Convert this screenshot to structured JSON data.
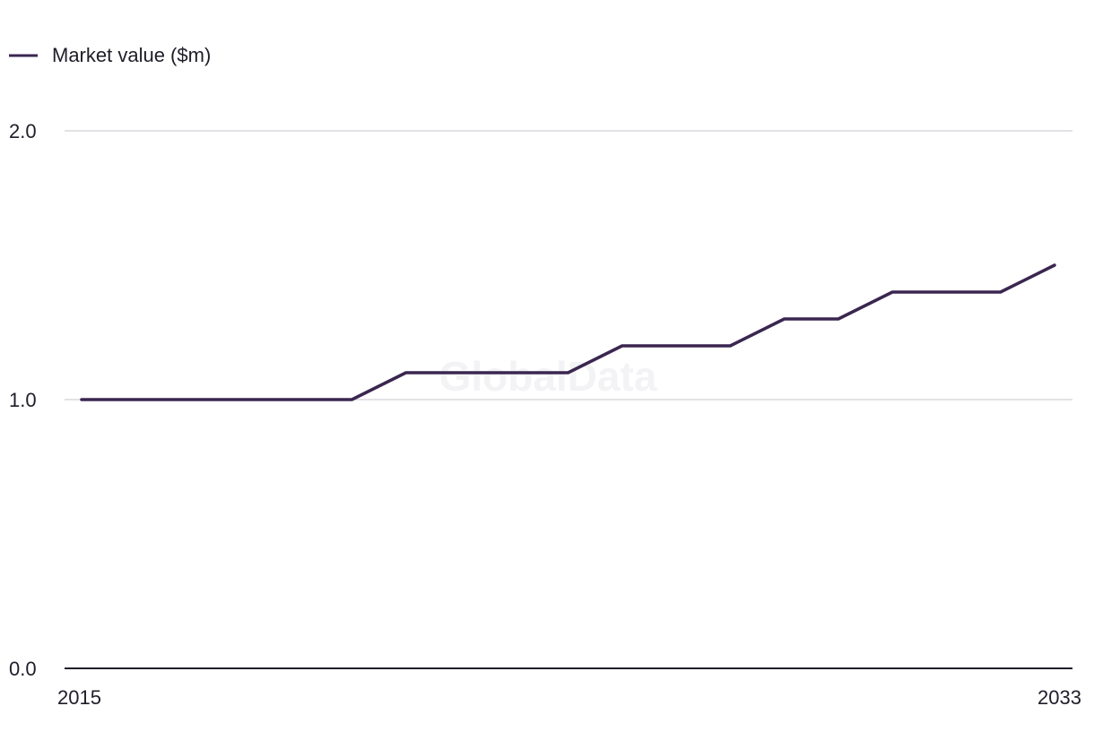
{
  "chart_data": {
    "type": "line",
    "legend": {
      "position": "top-left"
    },
    "series": [
      {
        "name": "Market value ($m)",
        "color": "#3a2650",
        "x": [
          2015,
          2016,
          2017,
          2018,
          2019,
          2020,
          2021,
          2022,
          2023,
          2024,
          2025,
          2026,
          2027,
          2028,
          2029,
          2030,
          2031,
          2032,
          2033
        ],
        "values": [
          1.0,
          1.0,
          1.0,
          1.0,
          1.0,
          1.0,
          1.1,
          1.1,
          1.1,
          1.1,
          1.2,
          1.2,
          1.2,
          1.3,
          1.3,
          1.4,
          1.4,
          1.4,
          1.5
        ]
      }
    ],
    "xlim": [
      2015,
      2033
    ],
    "ylim": [
      0.0,
      2.0
    ],
    "x_tick_labels": [
      "2015",
      "2033"
    ],
    "y_tick_labels": [
      "0.0",
      "1.0",
      "2.0"
    ],
    "y_tick_values": [
      0.0,
      1.0,
      2.0
    ],
    "grid": true,
    "gridline_color": "#d9d9de",
    "axis_color": "#1e1e2a",
    "watermark": "GlobalData"
  }
}
